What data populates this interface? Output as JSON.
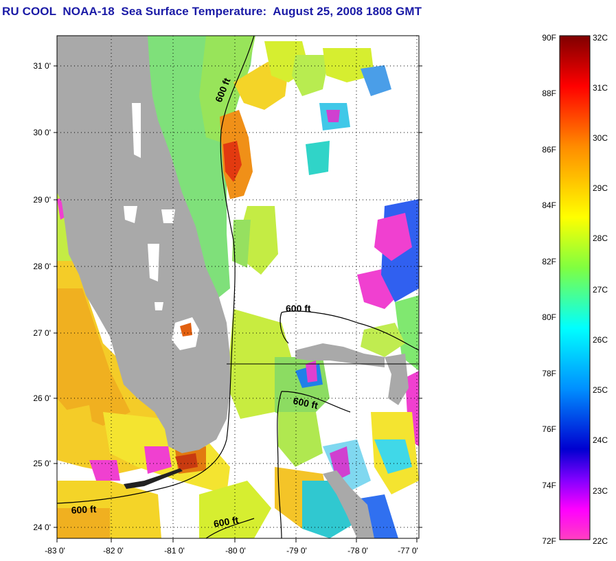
{
  "title": "RU COOL  NOAA-18  Sea Surface Temperature:  August 25, 2008 1808 GMT",
  "map": {
    "lat_ticks": [
      "31 0'",
      "30 0'",
      "29 0'",
      "28 0'",
      "27 0'",
      "26 0'",
      "25 0'",
      "24 0'"
    ],
    "lon_ticks": [
      "-83 0'",
      "-82 0'",
      "-81 0'",
      "-80 0'",
      "-79 0'",
      "-78 0'",
      "-77 0'"
    ],
    "contour_label": "600 ft",
    "colors": {
      "land": "#a9a9a9",
      "no_data": "#ffffff",
      "frame": "#000000"
    }
  },
  "colorbar": {
    "f_labels": [
      "90F",
      "88F",
      "86F",
      "84F",
      "82F",
      "80F",
      "78F",
      "76F",
      "74F",
      "72F"
    ],
    "c_labels": [
      "32C",
      "31C",
      "30C",
      "29C",
      "28C",
      "27C",
      "26C",
      "25C",
      "24C",
      "23C",
      "22C"
    ],
    "range_c": [
      22,
      32
    ],
    "range_f": [
      72,
      90
    ],
    "gradient": [
      "#7f0000",
      "#ff0000",
      "#ff8c00",
      "#ffff00",
      "#80ff40",
      "#00ffff",
      "#0080ff",
      "#0000d0",
      "#8000ff",
      "#ff00ff",
      "#ff40c0"
    ]
  }
}
